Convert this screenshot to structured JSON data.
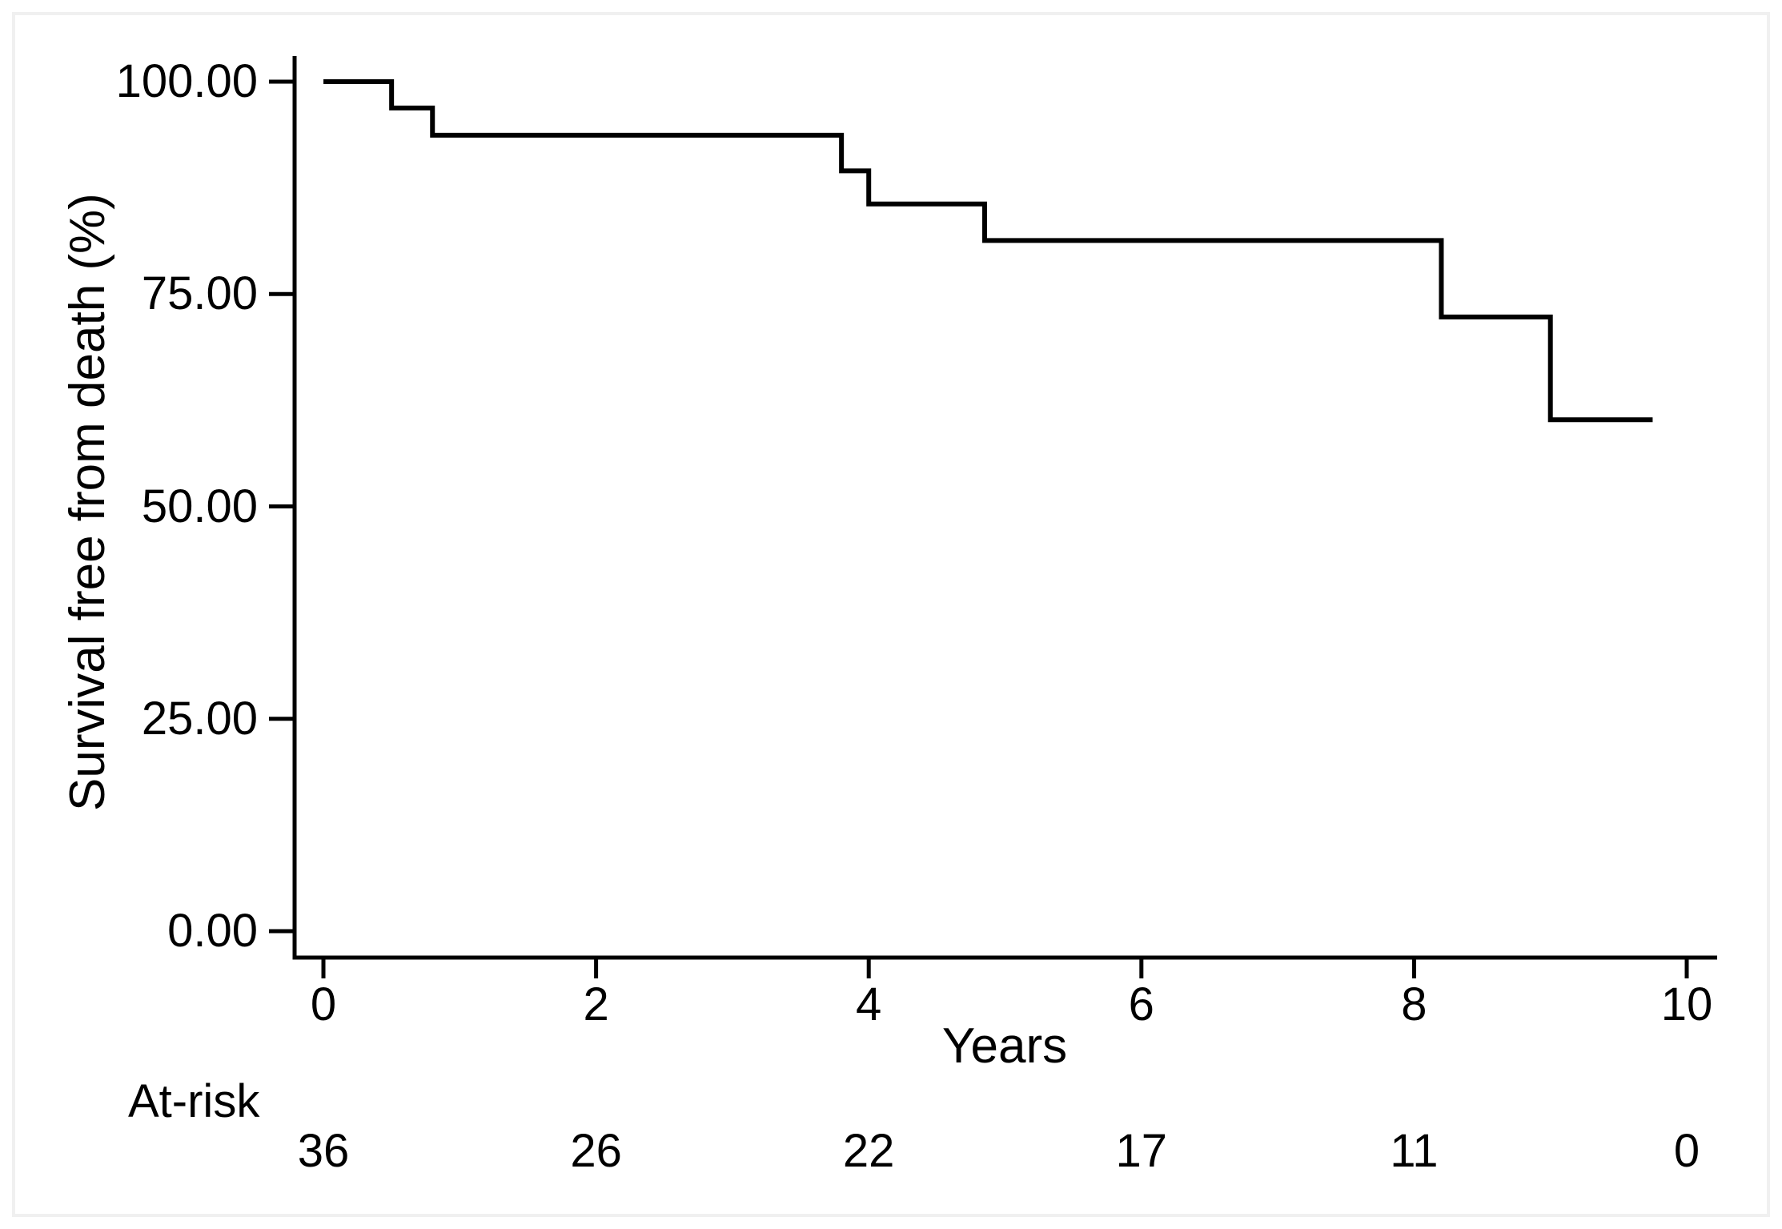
{
  "figure": {
    "background": "#ffffff",
    "frame_color": "#f0f0f0",
    "text_color": "#000000",
    "curve_color": "#000000"
  },
  "chart_data": {
    "type": "line",
    "subtype": "kaplan-meier-step",
    "title": "",
    "xlabel": "Years",
    "ylabel": "Survival free from death (%)",
    "xlim": [
      0,
      10
    ],
    "ylim": [
      0,
      100
    ],
    "grid": false,
    "legend": "none",
    "xticks": {
      "values": [
        0,
        2,
        4,
        6,
        8,
        10
      ],
      "labels": [
        "0",
        "2",
        "4",
        "6",
        "8",
        "10"
      ]
    },
    "yticks": {
      "values": [
        0,
        25,
        50,
        75,
        100
      ],
      "labels": [
        "0.00",
        "25.00",
        "50.00",
        "75.00",
        "100.00"
      ]
    },
    "series": [
      {
        "name": "Survival free from death",
        "start": [
          0,
          100
        ],
        "drops": [
          [
            0.5,
            96.9
          ],
          [
            0.8,
            93.7
          ],
          [
            3.8,
            89.5
          ],
          [
            4.0,
            85.6
          ],
          [
            4.85,
            81.3
          ],
          [
            8.2,
            72.3
          ],
          [
            9.0,
            60.2
          ]
        ],
        "end_time": 9.75
      }
    ],
    "at_risk": {
      "label": "At-risk",
      "times": [
        0,
        2,
        4,
        6,
        8,
        10
      ],
      "counts": [
        36,
        26,
        22,
        17,
        11,
        0
      ]
    }
  }
}
